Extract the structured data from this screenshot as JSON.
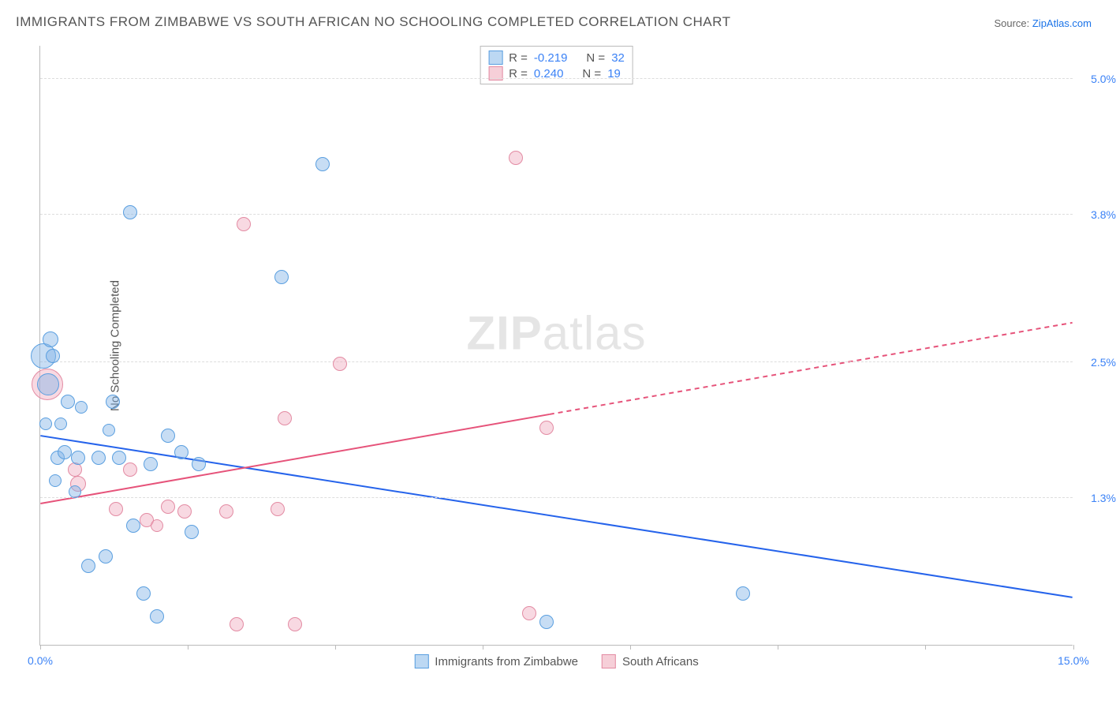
{
  "title": "IMMIGRANTS FROM ZIMBABWE VS SOUTH AFRICAN NO SCHOOLING COMPLETED CORRELATION CHART",
  "source_label": "Source: ",
  "source_value": "ZipAtlas.com",
  "ylabel": "No Schooling Completed",
  "watermark": {
    "bold": "ZIP",
    "rest": "atlas"
  },
  "chart": {
    "type": "scatter",
    "xlim": [
      0.0,
      15.0
    ],
    "ylim": [
      0.0,
      5.3
    ],
    "x_tick_positions": [
      0,
      2.14,
      4.28,
      6.42,
      8.57,
      10.71,
      12.85,
      15.0
    ],
    "x_tick_labels": {
      "first": "0.0%",
      "last": "15.0%"
    },
    "y_gridlines": [
      1.3,
      2.5,
      3.8,
      5.0
    ],
    "y_tick_labels": [
      "1.3%",
      "2.5%",
      "3.8%",
      "5.0%"
    ],
    "background_color": "#ffffff",
    "grid_color": "#dddddd",
    "axis_color": "#bbbbbb",
    "tick_label_color": "#3b82f6",
    "series": {
      "blue": {
        "label": "Immigrants from Zimbabwe",
        "color_fill": "rgba(130,180,230,0.45)",
        "color_stroke": "#5a9fe0",
        "r_value": "-0.219",
        "n_value": "32",
        "trend": {
          "x1": 0.0,
          "y1": 1.85,
          "x2": 15.0,
          "y2": 0.42,
          "solid_to_x": 15.0,
          "stroke": "#2563eb",
          "width": 2
        },
        "points": [
          {
            "x": 0.05,
            "y": 2.55,
            "r": 16
          },
          {
            "x": 0.15,
            "y": 2.7,
            "r": 10
          },
          {
            "x": 0.18,
            "y": 2.55,
            "r": 9
          },
          {
            "x": 0.25,
            "y": 1.65,
            "r": 9
          },
          {
            "x": 0.35,
            "y": 1.7,
            "r": 9
          },
          {
            "x": 0.4,
            "y": 2.15,
            "r": 9
          },
          {
            "x": 0.55,
            "y": 1.65,
            "r": 9
          },
          {
            "x": 0.7,
            "y": 0.7,
            "r": 9
          },
          {
            "x": 0.85,
            "y": 1.65,
            "r": 9
          },
          {
            "x": 0.95,
            "y": 0.78,
            "r": 9
          },
          {
            "x": 1.05,
            "y": 2.15,
            "r": 9
          },
          {
            "x": 1.15,
            "y": 1.65,
            "r": 9
          },
          {
            "x": 1.3,
            "y": 3.82,
            "r": 9
          },
          {
            "x": 1.35,
            "y": 1.05,
            "r": 9
          },
          {
            "x": 1.5,
            "y": 0.45,
            "r": 9
          },
          {
            "x": 1.6,
            "y": 1.6,
            "r": 9
          },
          {
            "x": 1.7,
            "y": 0.25,
            "r": 9
          },
          {
            "x": 1.85,
            "y": 1.85,
            "r": 9
          },
          {
            "x": 2.05,
            "y": 1.7,
            "r": 9
          },
          {
            "x": 2.2,
            "y": 1.0,
            "r": 9
          },
          {
            "x": 2.3,
            "y": 1.6,
            "r": 9
          },
          {
            "x": 3.5,
            "y": 3.25,
            "r": 9
          },
          {
            "x": 4.1,
            "y": 4.25,
            "r": 9
          },
          {
            "x": 7.35,
            "y": 0.2,
            "r": 9
          },
          {
            "x": 10.2,
            "y": 0.45,
            "r": 9
          },
          {
            "x": 0.5,
            "y": 1.35,
            "r": 8
          },
          {
            "x": 0.3,
            "y": 1.95,
            "r": 8
          },
          {
            "x": 0.6,
            "y": 2.1,
            "r": 8
          },
          {
            "x": 0.12,
            "y": 2.3,
            "r": 14
          },
          {
            "x": 0.08,
            "y": 1.95,
            "r": 8
          },
          {
            "x": 0.22,
            "y": 1.45,
            "r": 8
          },
          {
            "x": 1.0,
            "y": 1.9,
            "r": 8
          }
        ]
      },
      "pink": {
        "label": "South Africans",
        "color_fill": "rgba(240,170,190,0.45)",
        "color_stroke": "#e38ba3",
        "r_value": "0.240",
        "n_value": "19",
        "trend": {
          "x1": 0.0,
          "y1": 1.25,
          "x2": 15.0,
          "y2": 2.85,
          "solid_to_x": 7.4,
          "stroke": "#e6537a",
          "width": 2
        },
        "points": [
          {
            "x": 0.1,
            "y": 2.3,
            "r": 20
          },
          {
            "x": 0.55,
            "y": 1.42,
            "r": 10
          },
          {
            "x": 0.5,
            "y": 1.55,
            "r": 9
          },
          {
            "x": 1.1,
            "y": 1.2,
            "r": 9
          },
          {
            "x": 1.3,
            "y": 1.55,
            "r": 9
          },
          {
            "x": 1.55,
            "y": 1.1,
            "r": 9
          },
          {
            "x": 1.85,
            "y": 1.22,
            "r": 9
          },
          {
            "x": 2.1,
            "y": 1.18,
            "r": 9
          },
          {
            "x": 2.7,
            "y": 1.18,
            "r": 9
          },
          {
            "x": 2.85,
            "y": 0.18,
            "r": 9
          },
          {
            "x": 2.95,
            "y": 3.72,
            "r": 9
          },
          {
            "x": 3.45,
            "y": 1.2,
            "r": 9
          },
          {
            "x": 3.55,
            "y": 2.0,
            "r": 9
          },
          {
            "x": 3.7,
            "y": 0.18,
            "r": 9
          },
          {
            "x": 4.35,
            "y": 2.48,
            "r": 9
          },
          {
            "x": 6.9,
            "y": 4.3,
            "r": 9
          },
          {
            "x": 7.1,
            "y": 0.28,
            "r": 9
          },
          {
            "x": 7.35,
            "y": 1.92,
            "r": 9
          },
          {
            "x": 1.7,
            "y": 1.05,
            "r": 8
          }
        ]
      }
    }
  },
  "legend_top": {
    "r_label": "R =",
    "n_label": "N ="
  },
  "legend_bottom": {
    "items": [
      {
        "color": "blue",
        "label_key": "chart.series.blue.label"
      },
      {
        "color": "pink",
        "label_key": "chart.series.pink.label"
      }
    ]
  }
}
